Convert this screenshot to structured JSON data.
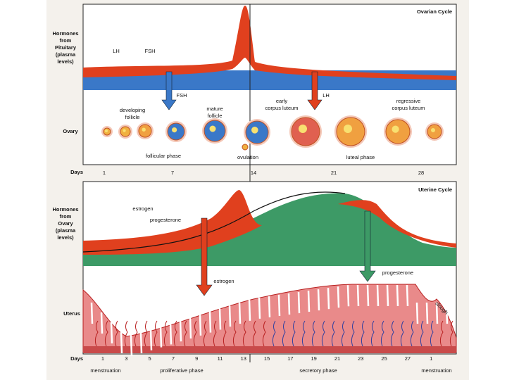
{
  "ovarian": {
    "title": "Ovarian Cycle",
    "hormone_label": [
      "Hormones",
      "from",
      "Pituitary",
      "(plasma",
      "levels)"
    ],
    "curve_labels": [
      "LH",
      "FSH"
    ],
    "arrow_labels": [
      "FSH",
      "LH"
    ],
    "stage_labels": [
      [
        "developing",
        "follicle"
      ],
      [
        "mature",
        "follicle"
      ],
      [
        "early",
        "corpus luteum"
      ],
      [
        "regressive",
        "corpus luteum"
      ]
    ],
    "row_label": "Ovary",
    "phase_labels": [
      "follicular phase",
      "ovulation",
      "luteal phase"
    ],
    "days_label": "Days",
    "days": [
      "1",
      "7",
      "14",
      "21",
      "28"
    ]
  },
  "uterine": {
    "title": "Uterine Cycle",
    "hormone_label": [
      "Hormones",
      "from",
      "Ovary",
      "(plasma",
      "levels)"
    ],
    "curve_labels": [
      "estrogen",
      "progesterone"
    ],
    "arrow_labels": [
      "estrogen",
      "progesterone"
    ],
    "row_label": "Uterus",
    "sloughing_label": "slough",
    "days_label": "Days",
    "days": [
      "1",
      "3",
      "5",
      "7",
      "9",
      "11",
      "13",
      "15",
      "17",
      "19",
      "21",
      "23",
      "25",
      "27",
      "1"
    ],
    "phase_labels": [
      "menstruation",
      "proliferative phase",
      "secretory phase",
      "menstruation"
    ]
  }
}
